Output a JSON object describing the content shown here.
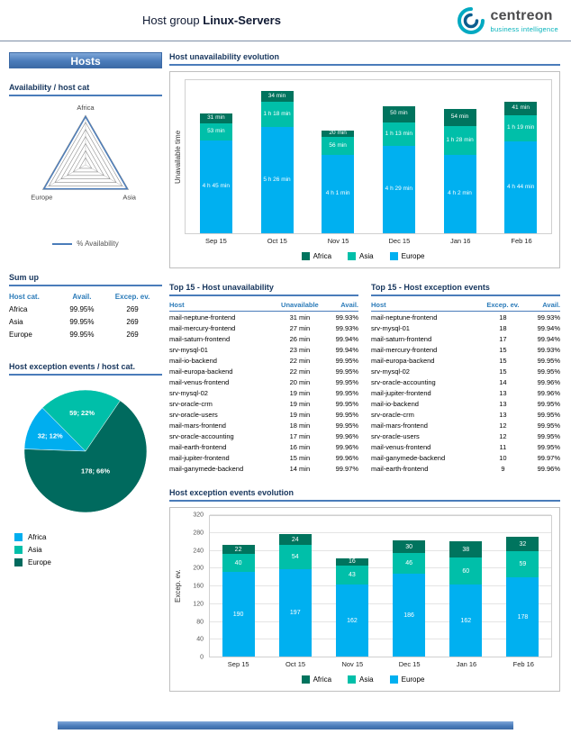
{
  "header": {
    "title_prefix": "Host group",
    "title_name": "Linux-Servers",
    "brand": {
      "name": "centreon",
      "tagline": "business intelligence"
    }
  },
  "colors": {
    "accent_blue": "#4a7cba",
    "title_navy": "#17365d",
    "table_header_blue": "#2b7bb9",
    "series": {
      "Africa": "#00745e",
      "Asia": "#00bfa9",
      "Europe": "#00b0f0"
    },
    "pie": {
      "Africa": "#00aeef",
      "Asia": "#00bfa9",
      "Europe": "#006a5e"
    }
  },
  "sidebar": {
    "panel_title": "Hosts",
    "availability_title": "Availability / host cat",
    "radar": {
      "axes": [
        "Africa",
        "Asia",
        "Europe"
      ],
      "legend_label": "% Availability"
    },
    "sumup": {
      "title": "Sum up",
      "columns": [
        "Host cat.",
        "Avail.",
        "Excep. ev."
      ],
      "rows": [
        [
          "Africa",
          "99.95%",
          "269"
        ],
        [
          "Asia",
          "99.95%",
          "269"
        ],
        [
          "Europe",
          "99.95%",
          "269"
        ]
      ]
    },
    "pie_section": {
      "title": "Host exception events / host cat.",
      "legend": [
        "Africa",
        "Asia",
        "Europe"
      ]
    }
  },
  "main": {
    "unavail_chart_title": "Host unavailability evolution",
    "excep_chart_title": "Host exception events evolution",
    "table_unavail": {
      "title": "Top 15 - Host unavailability",
      "columns": [
        "Host",
        "Unavailable",
        "Avail."
      ],
      "rows": [
        [
          "mail-neptune-frontend",
          "31 min",
          "99.93%"
        ],
        [
          "mail-mercury-frontend",
          "27 min",
          "99.93%"
        ],
        [
          "mail-saturn-frontend",
          "26 min",
          "99.94%"
        ],
        [
          "srv-mysql-01",
          "23 min",
          "99.94%"
        ],
        [
          "mail-io-backend",
          "22 min",
          "99.95%"
        ],
        [
          "mail-europa-backend",
          "22 min",
          "99.95%"
        ],
        [
          "mail-venus-frontend",
          "20 min",
          "99.95%"
        ],
        [
          "srv-mysql-02",
          "19 min",
          "99.95%"
        ],
        [
          "srv-oracle-crm",
          "19 min",
          "99.95%"
        ],
        [
          "srv-oracle-users",
          "19 min",
          "99.95%"
        ],
        [
          "mail-mars-frontend",
          "18 min",
          "99.95%"
        ],
        [
          "srv-oracle-accounting",
          "17 min",
          "99.96%"
        ],
        [
          "mail-earth-frontend",
          "16 min",
          "99.96%"
        ],
        [
          "mail-jupiter-frontend",
          "15 min",
          "99.96%"
        ],
        [
          "mail-ganymede-backend",
          "14 min",
          "99.97%"
        ]
      ]
    },
    "table_excep": {
      "title": "Top 15 - Host exception events",
      "columns": [
        "Host",
        "Excep. ev.",
        "Avail."
      ],
      "rows": [
        [
          "mail-neptune-frontend",
          "18",
          "99.93%"
        ],
        [
          "srv-mysql-01",
          "18",
          "99.94%"
        ],
        [
          "mail-saturn-frontend",
          "17",
          "99.94%"
        ],
        [
          "mail-mercury-frontend",
          "15",
          "99.93%"
        ],
        [
          "mail-europa-backend",
          "15",
          "99.95%"
        ],
        [
          "srv-mysql-02",
          "15",
          "99.95%"
        ],
        [
          "srv-oracle-accounting",
          "14",
          "99.96%"
        ],
        [
          "mail-jupiter-frontend",
          "13",
          "99.96%"
        ],
        [
          "mail-io-backend",
          "13",
          "99.95%"
        ],
        [
          "srv-oracle-crm",
          "13",
          "99.95%"
        ],
        [
          "mail-mars-frontend",
          "12",
          "99.95%"
        ],
        [
          "srv-oracle-users",
          "12",
          "99.95%"
        ],
        [
          "mail-venus-frontend",
          "11",
          "99.95%"
        ],
        [
          "mail-ganymede-backend",
          "10",
          "99.97%"
        ],
        [
          "mail-earth-frontend",
          "9",
          "99.96%"
        ]
      ]
    }
  },
  "chart_data": [
    {
      "type": "radar",
      "title": "Availability / host cat",
      "axes": [
        "Africa",
        "Asia",
        "Europe"
      ],
      "series": [
        {
          "name": "% Availability",
          "values": [
            99.95,
            99.95,
            99.95
          ]
        }
      ],
      "grid_levels": 7
    },
    {
      "type": "bar",
      "stacked": true,
      "title": "Host unavailability evolution",
      "ylabel": "Unavailable time",
      "unit": "minutes",
      "categories": [
        "Sep 15",
        "Oct 15",
        "Nov 15",
        "Dec 15",
        "Jan 16",
        "Feb 16"
      ],
      "series": [
        {
          "name": "Europe",
          "values": [
            285,
            326,
            241,
            269,
            242,
            284
          ],
          "labels": [
            "4 h 45 min",
            "5 h 26 min",
            "4 h 1 min",
            "4 h 29 min",
            "4 h 2 min",
            "4 h 44 min"
          ]
        },
        {
          "name": "Asia",
          "values": [
            53,
            78,
            56,
            73,
            88,
            79
          ],
          "labels": [
            "53 min",
            "1 h 18 min",
            "56 min",
            "1 h 13 min",
            "1 h 28 min",
            "1 h 19 min"
          ]
        },
        {
          "name": "Africa",
          "values": [
            31,
            34,
            20,
            50,
            54,
            41
          ],
          "labels": [
            "31 min",
            "34 min",
            "20 min",
            "50 min",
            "54 min",
            "41 min"
          ]
        }
      ],
      "legend": [
        "Africa",
        "Asia",
        "Europe"
      ],
      "legend_position": "bottom"
    },
    {
      "type": "pie",
      "title": "Host exception events / host cat.",
      "slices": [
        {
          "name": "Africa",
          "value": 32,
          "pct": 12,
          "label": "32; 12%"
        },
        {
          "name": "Asia",
          "value": 59,
          "pct": 22,
          "label": "59; 22%"
        },
        {
          "name": "Europe",
          "value": 178,
          "pct": 66,
          "label": "178; 66%"
        }
      ],
      "legend": [
        "Africa",
        "Asia",
        "Europe"
      ],
      "legend_position": "bottom-left"
    },
    {
      "type": "bar",
      "stacked": true,
      "title": "Host exception events evolution",
      "ylabel": "Excep. ev.",
      "ylim": [
        0,
        320
      ],
      "yticks": [
        0,
        40,
        80,
        120,
        160,
        200,
        240,
        280,
        320
      ],
      "categories": [
        "Sep 15",
        "Oct 15",
        "Nov 15",
        "Dec 15",
        "Jan 16",
        "Feb 16"
      ],
      "series": [
        {
          "name": "Europe",
          "values": [
            190,
            197,
            162,
            186,
            162,
            178
          ]
        },
        {
          "name": "Asia",
          "values": [
            40,
            54,
            43,
            46,
            60,
            59
          ]
        },
        {
          "name": "Africa",
          "values": [
            22,
            24,
            16,
            30,
            38,
            32
          ]
        }
      ],
      "legend": [
        "Africa",
        "Asia",
        "Europe"
      ],
      "legend_position": "bottom"
    }
  ]
}
